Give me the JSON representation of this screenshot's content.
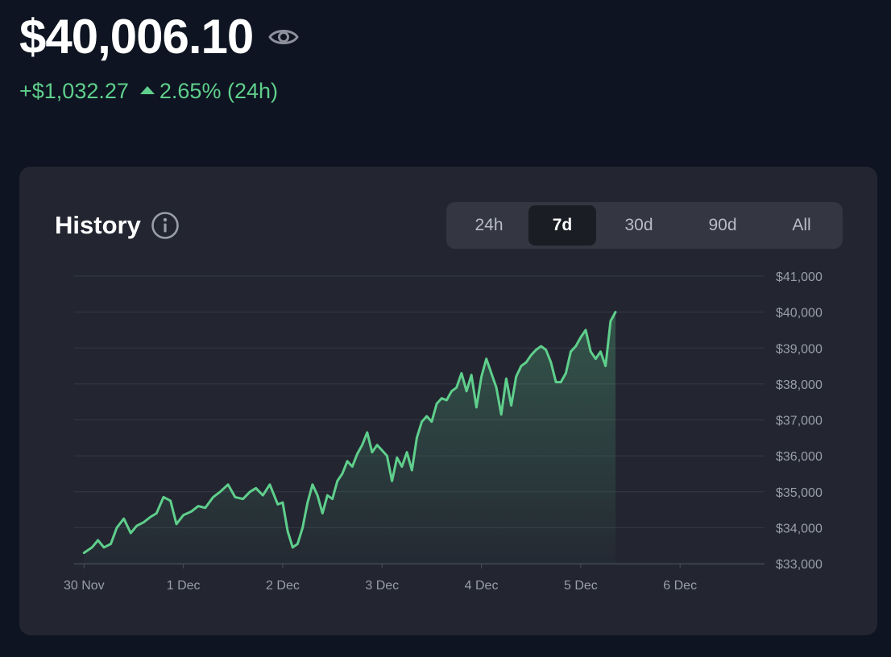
{
  "header": {
    "balance": "$40,006.10",
    "change_abs": "+$1,032.27",
    "change_pct": "2.65% (24h)",
    "visibility_icon": "eye-icon"
  },
  "history": {
    "title": "History",
    "info_icon": "info-circle-icon",
    "ranges": [
      {
        "label": "24h",
        "active": false
      },
      {
        "label": "7d",
        "active": true
      },
      {
        "label": "30d",
        "active": false
      },
      {
        "label": "90d",
        "active": false
      },
      {
        "label": "All",
        "active": false
      }
    ]
  },
  "colors": {
    "background": "#0e1421",
    "card": "#232631",
    "positive": "#5fcf8c",
    "line": "#5fcf8c",
    "grid": "#353946",
    "tick_text": "#9a9ea9"
  },
  "chart_data": {
    "type": "area",
    "title": "",
    "xlabel": "",
    "ylabel": "",
    "x_ticks": [
      "30 Nov",
      "1 Dec",
      "2 Dec",
      "3 Dec",
      "4 Dec",
      "5 Dec",
      "6 Dec"
    ],
    "y_ticks": [
      "$33,000",
      "$34,000",
      "$35,000",
      "$36,000",
      "$37,000",
      "$38,000",
      "$39,000",
      "$40,000",
      "$41,000"
    ],
    "ylim": [
      33000,
      41000
    ],
    "xlim": [
      -0.1,
      6.85
    ],
    "y_axis_position": "right",
    "grid": true,
    "series": [
      {
        "points": [
          [
            0.0,
            33300
          ],
          [
            0.08,
            33450
          ],
          [
            0.14,
            33650
          ],
          [
            0.2,
            33450
          ],
          [
            0.27,
            33550
          ],
          [
            0.33,
            34000
          ],
          [
            0.4,
            34250
          ],
          [
            0.47,
            33850
          ],
          [
            0.53,
            34050
          ],
          [
            0.6,
            34150
          ],
          [
            0.67,
            34300
          ],
          [
            0.73,
            34400
          ],
          [
            0.8,
            34850
          ],
          [
            0.87,
            34750
          ],
          [
            0.93,
            34100
          ],
          [
            1.0,
            34350
          ],
          [
            1.08,
            34450
          ],
          [
            1.15,
            34600
          ],
          [
            1.22,
            34550
          ],
          [
            1.3,
            34850
          ],
          [
            1.37,
            35000
          ],
          [
            1.45,
            35200
          ],
          [
            1.52,
            34850
          ],
          [
            1.6,
            34800
          ],
          [
            1.67,
            35000
          ],
          [
            1.73,
            35100
          ],
          [
            1.8,
            34900
          ],
          [
            1.87,
            35200
          ],
          [
            1.95,
            34650
          ],
          [
            2.0,
            34700
          ],
          [
            2.05,
            33900
          ],
          [
            2.1,
            33450
          ],
          [
            2.15,
            33550
          ],
          [
            2.2,
            34000
          ],
          [
            2.25,
            34700
          ],
          [
            2.3,
            35200
          ],
          [
            2.35,
            34900
          ],
          [
            2.4,
            34400
          ],
          [
            2.45,
            34900
          ],
          [
            2.5,
            34800
          ],
          [
            2.55,
            35300
          ],
          [
            2.6,
            35500
          ],
          [
            2.65,
            35850
          ],
          [
            2.7,
            35700
          ],
          [
            2.75,
            36050
          ],
          [
            2.8,
            36300
          ],
          [
            2.85,
            36650
          ],
          [
            2.9,
            36100
          ],
          [
            2.95,
            36300
          ],
          [
            3.0,
            36150
          ],
          [
            3.05,
            36000
          ],
          [
            3.1,
            35300
          ],
          [
            3.15,
            35950
          ],
          [
            3.2,
            35700
          ],
          [
            3.25,
            36100
          ],
          [
            3.3,
            35600
          ],
          [
            3.35,
            36500
          ],
          [
            3.4,
            36950
          ],
          [
            3.45,
            37100
          ],
          [
            3.5,
            36950
          ],
          [
            3.55,
            37450
          ],
          [
            3.6,
            37600
          ],
          [
            3.65,
            37550
          ],
          [
            3.7,
            37800
          ],
          [
            3.75,
            37900
          ],
          [
            3.8,
            38300
          ],
          [
            3.85,
            37800
          ],
          [
            3.9,
            38250
          ],
          [
            3.95,
            37350
          ],
          [
            4.0,
            38200
          ],
          [
            4.05,
            38700
          ],
          [
            4.1,
            38300
          ],
          [
            4.15,
            37900
          ],
          [
            4.2,
            37150
          ],
          [
            4.25,
            38150
          ],
          [
            4.3,
            37400
          ],
          [
            4.35,
            38200
          ],
          [
            4.4,
            38500
          ],
          [
            4.45,
            38600
          ],
          [
            4.5,
            38800
          ],
          [
            4.55,
            38950
          ],
          [
            4.6,
            39050
          ],
          [
            4.65,
            38950
          ],
          [
            4.7,
            38600
          ],
          [
            4.75,
            38050
          ],
          [
            4.8,
            38050
          ],
          [
            4.85,
            38300
          ],
          [
            4.9,
            38900
          ],
          [
            4.95,
            39050
          ],
          [
            5.0,
            39300
          ],
          [
            5.05,
            39500
          ],
          [
            5.1,
            38900
          ],
          [
            5.15,
            38700
          ],
          [
            5.2,
            38900
          ],
          [
            5.25,
            38500
          ],
          [
            5.3,
            39750
          ],
          [
            5.35,
            40000
          ]
        ]
      }
    ]
  }
}
